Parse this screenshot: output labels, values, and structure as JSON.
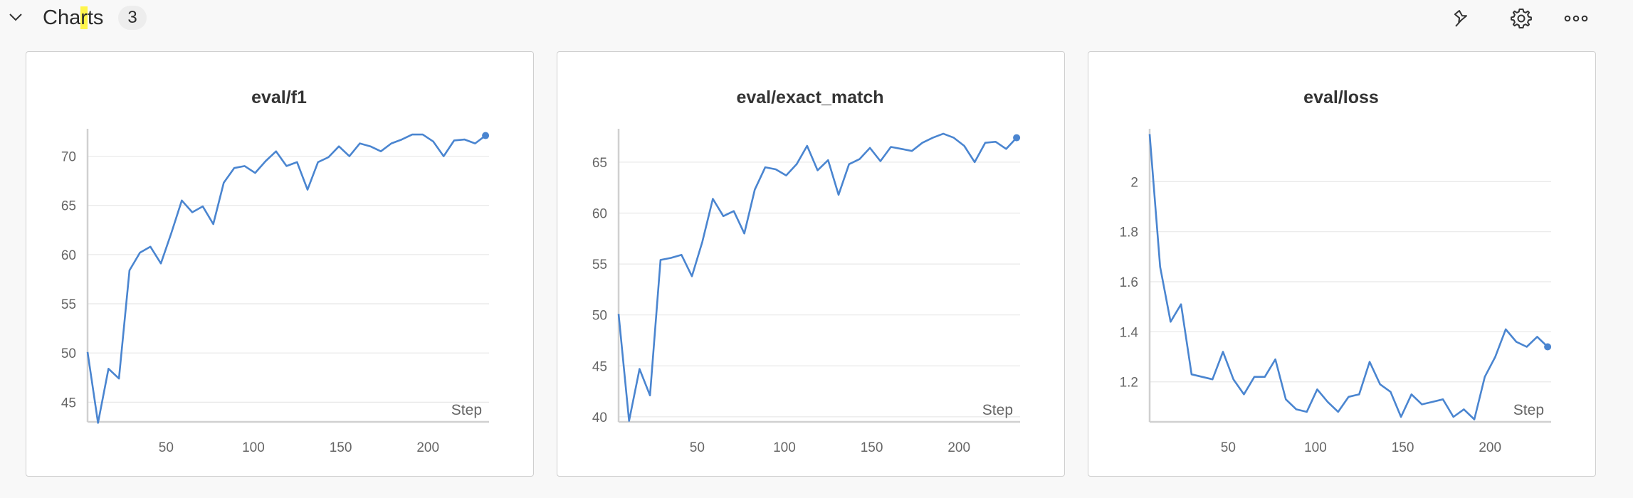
{
  "section": {
    "title_pre": "Cha",
    "title_hl": "r",
    "title_post": "ts",
    "count": "3"
  },
  "colors": {
    "line": "#4a85d0",
    "grid": "#e8e8e8",
    "axis": "#d0d0d0"
  },
  "icons": [
    "chevron-down-icon",
    "pin-icon",
    "gear-icon",
    "more-horizontal-icon"
  ],
  "chart_data": [
    {
      "type": "line",
      "title": "eval/f1",
      "xlabel": "Step",
      "ylabel": "",
      "xlim": [
        5,
        235
      ],
      "ylim": [
        43,
        72.5
      ],
      "xticks": [
        50,
        100,
        150,
        200
      ],
      "yticks": [
        45,
        50,
        55,
        60,
        65,
        70
      ],
      "grid": true,
      "x": [
        5,
        11,
        17,
        23,
        29,
        35,
        41,
        47,
        53,
        59,
        65,
        71,
        77,
        83,
        89,
        95,
        101,
        107,
        113,
        119,
        125,
        131,
        137,
        143,
        149,
        155,
        161,
        167,
        173,
        179,
        185,
        191,
        197,
        203,
        209,
        215,
        221,
        227,
        233
      ],
      "y": [
        50.1,
        42.9,
        48.4,
        47.4,
        58.4,
        60.2,
        60.8,
        59.1,
        62.2,
        65.5,
        64.3,
        64.9,
        63.1,
        67.3,
        68.8,
        69.0,
        68.3,
        69.5,
        70.5,
        69.0,
        69.4,
        66.6,
        69.4,
        69.9,
        71.0,
        70.0,
        71.3,
        71.0,
        70.5,
        71.3,
        71.7,
        72.2,
        72.2,
        71.5,
        70.0,
        71.6,
        71.7,
        71.3,
        72.1
      ]
    },
    {
      "type": "line",
      "title": "eval/exact_match",
      "xlabel": "Step",
      "ylabel": "",
      "xlim": [
        5,
        235
      ],
      "ylim": [
        39.5,
        68
      ],
      "xticks": [
        50,
        100,
        150,
        200
      ],
      "yticks": [
        40,
        45,
        50,
        55,
        60,
        65
      ],
      "grid": true,
      "x": [
        5,
        11,
        17,
        23,
        29,
        35,
        41,
        47,
        53,
        59,
        65,
        71,
        77,
        83,
        89,
        95,
        101,
        107,
        113,
        119,
        125,
        131,
        137,
        143,
        149,
        155,
        161,
        167,
        173,
        179,
        185,
        191,
        197,
        203,
        209,
        215,
        221,
        227,
        233
      ],
      "y": [
        50.1,
        39.6,
        44.7,
        42.1,
        55.4,
        55.6,
        55.9,
        53.8,
        57.2,
        61.4,
        59.7,
        60.2,
        58.0,
        62.3,
        64.5,
        64.3,
        63.7,
        64.8,
        66.6,
        64.2,
        65.2,
        61.8,
        64.8,
        65.3,
        66.4,
        65.1,
        66.5,
        66.3,
        66.1,
        66.9,
        67.4,
        67.8,
        67.4,
        66.6,
        65.0,
        66.9,
        67.0,
        66.3,
        67.4
      ]
    },
    {
      "type": "line",
      "title": "eval/loss",
      "xlabel": "Step",
      "ylabel": "",
      "xlim": [
        5,
        235
      ],
      "ylim": [
        1.04,
        2.2
      ],
      "xticks": [
        50,
        100,
        150,
        200
      ],
      "yticks": [
        1.2,
        1.4,
        1.6,
        1.8,
        2
      ],
      "ytick_labels": [
        "1.2",
        "1.4",
        "1.6",
        "1.8",
        "2"
      ],
      "grid": true,
      "x": [
        5,
        11,
        17,
        23,
        29,
        35,
        41,
        47,
        53,
        59,
        65,
        71,
        77,
        83,
        89,
        95,
        101,
        107,
        113,
        119,
        125,
        131,
        137,
        143,
        149,
        155,
        161,
        167,
        173,
        179,
        185,
        191,
        197,
        203,
        209,
        215,
        221,
        227,
        233
      ],
      "y": [
        2.19,
        1.66,
        1.44,
        1.51,
        1.23,
        1.22,
        1.21,
        1.32,
        1.21,
        1.15,
        1.22,
        1.22,
        1.29,
        1.13,
        1.09,
        1.08,
        1.17,
        1.12,
        1.08,
        1.14,
        1.15,
        1.28,
        1.19,
        1.16,
        1.06,
        1.15,
        1.11,
        1.12,
        1.13,
        1.06,
        1.09,
        1.05,
        1.22,
        1.3,
        1.41,
        1.36,
        1.34,
        1.38,
        1.34
      ]
    }
  ]
}
